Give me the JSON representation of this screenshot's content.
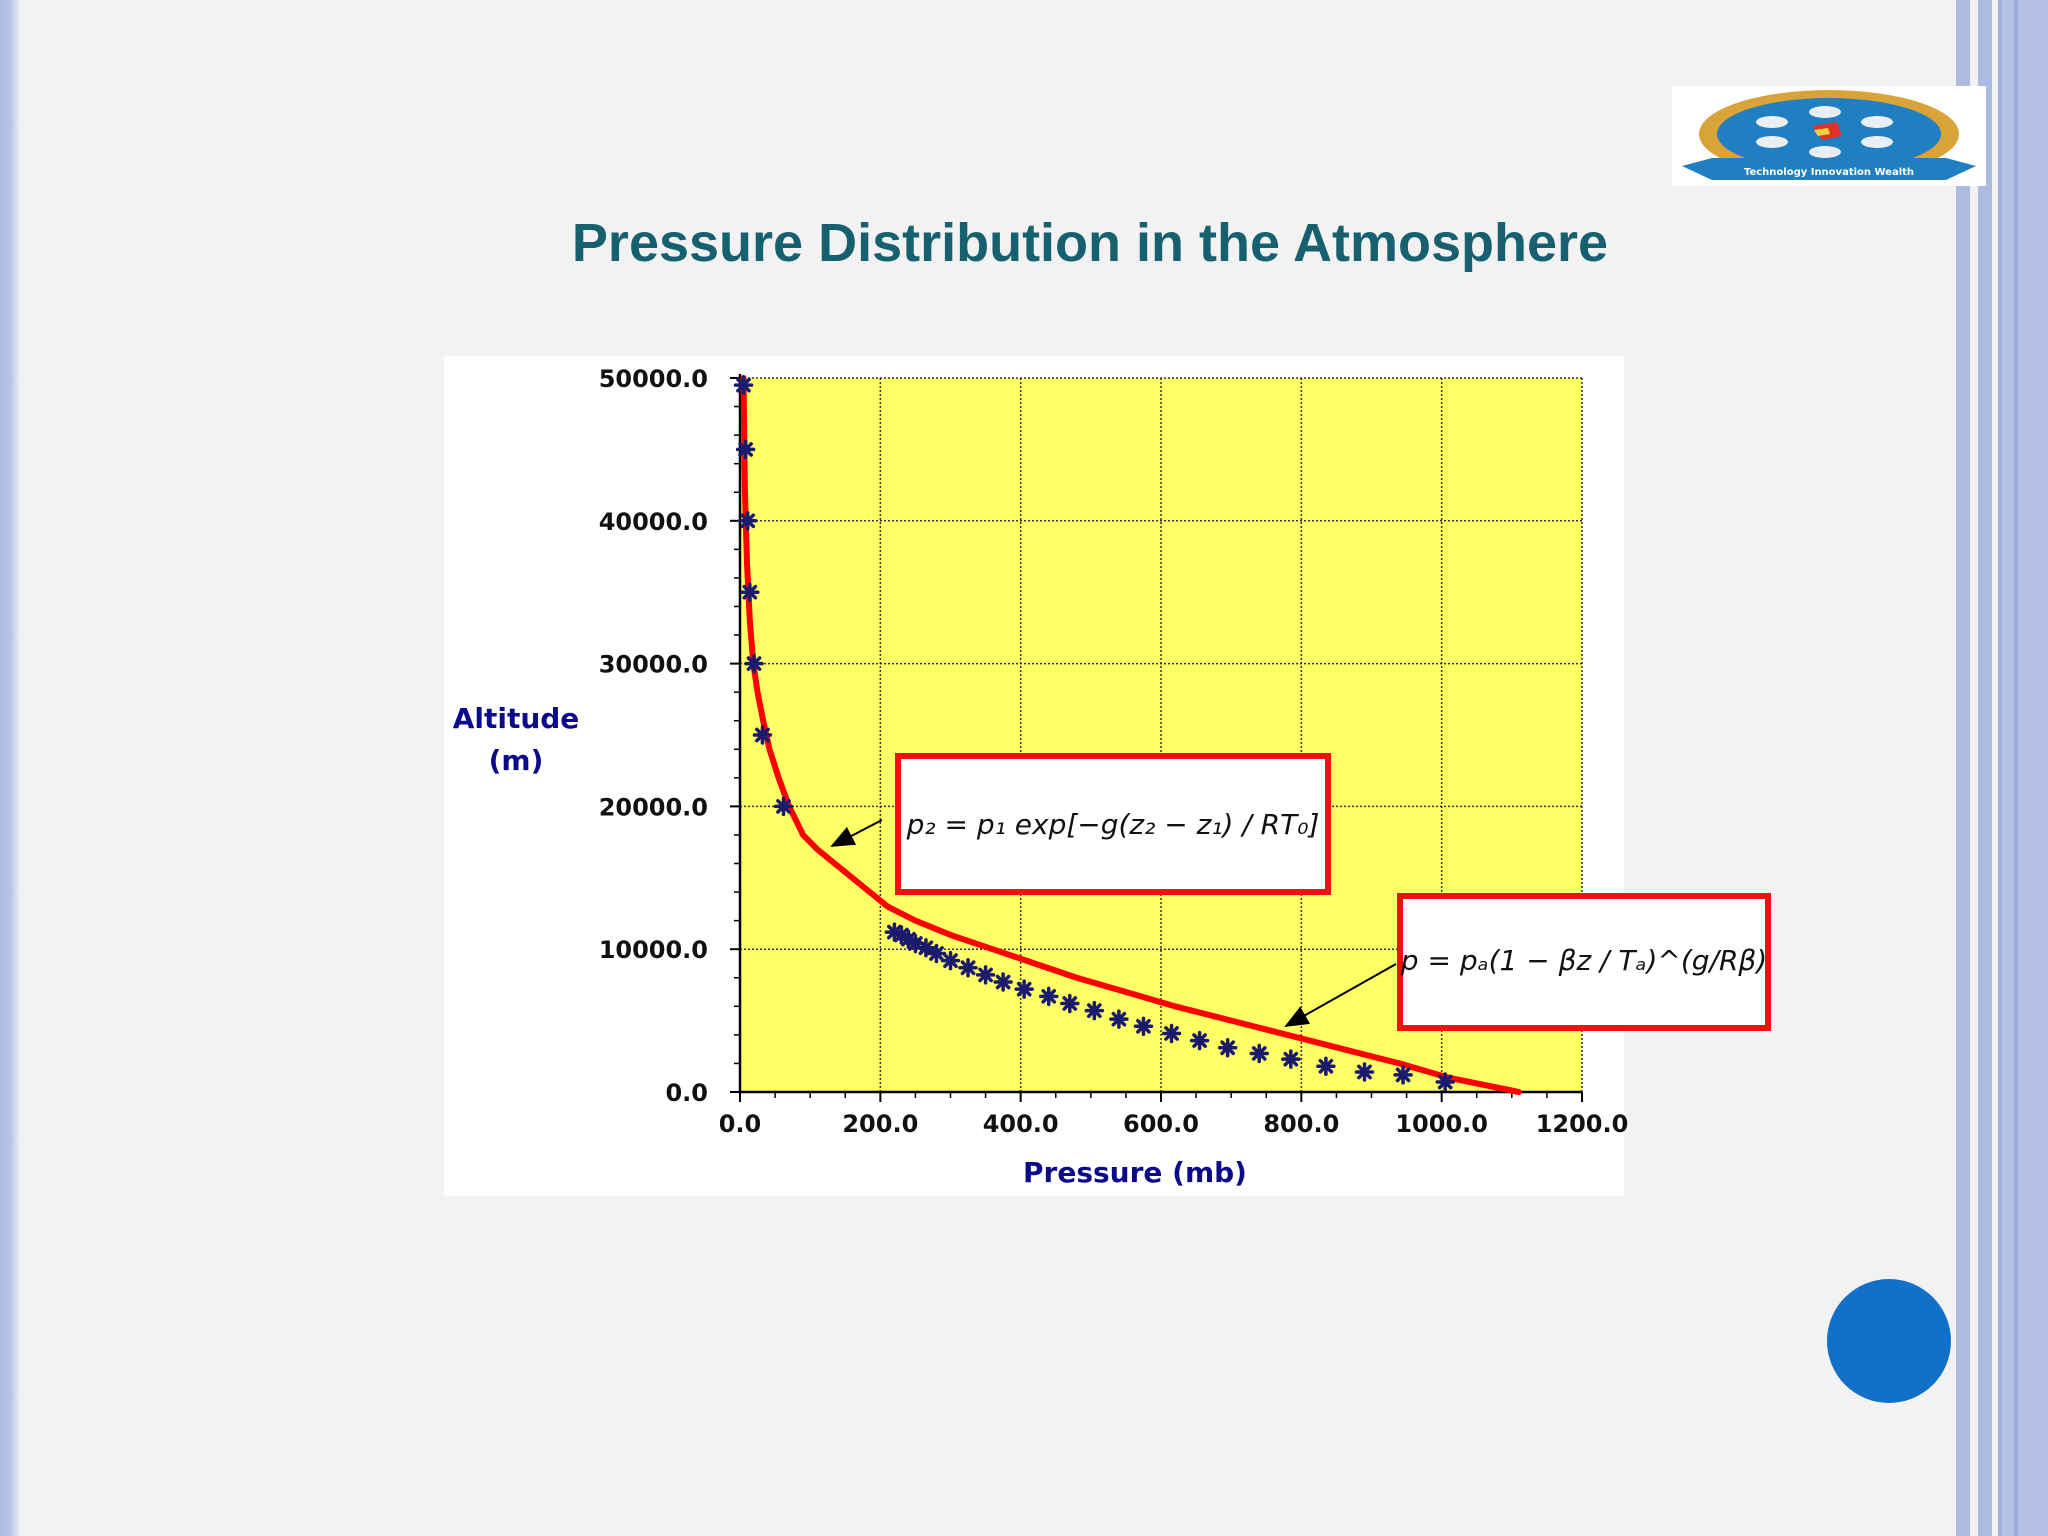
{
  "slide": {
    "title": "Pressure Distribution in the Atmosphere",
    "logo_text": "Technology Innovation Wealth"
  },
  "colors": {
    "title": "#17606f",
    "plot_background": "#ffff66",
    "curve": "#ff0000",
    "markers": "#1a1a6e",
    "axis_labels": "#0a0a8a",
    "circle": "#1270c9",
    "side_bars": "#aebbe0"
  },
  "chart_data": {
    "type": "line",
    "xlabel": "Pressure (mb)",
    "ylabel_line1": "Altitude",
    "ylabel_line2": "(m)",
    "xlim": [
      0,
      1200
    ],
    "ylim": [
      0,
      50000
    ],
    "grid": true,
    "x_ticks": [
      0,
      200,
      400,
      600,
      800,
      1000,
      1200
    ],
    "x_tick_labels": [
      "0.0",
      "200.0",
      "400.0",
      "600.0",
      "800.0",
      "1000.0",
      "1200.0"
    ],
    "y_ticks": [
      0,
      10000,
      20000,
      30000,
      40000,
      50000
    ],
    "y_tick_labels": [
      "0.0",
      "10000.0",
      "20000.0",
      "30000.0",
      "40000.0",
      "50000.0"
    ],
    "series": [
      {
        "kind": "curve",
        "x": [
          1110,
          1010,
          940,
          860,
          780,
          700,
          620,
          550,
          480,
          420,
          360,
          300,
          250,
          210,
          185,
          160,
          135,
          110,
          90,
          70,
          55,
          42,
          33,
          25,
          19,
          14,
          10,
          7,
          5
        ],
        "y": [
          0,
          1000,
          2000,
          3000,
          4000,
          5000,
          6000,
          7000,
          8000,
          9000,
          10000,
          11000,
          12000,
          13000,
          14000,
          15000,
          16000,
          17000,
          18000,
          20000,
          22000,
          24000,
          26000,
          28000,
          30000,
          33000,
          37000,
          42000,
          50000
        ]
      },
      {
        "kind": "markers",
        "x": [
          1005,
          945,
          890,
          835,
          785,
          740,
          695,
          655,
          615,
          575,
          540,
          505,
          470,
          440,
          405,
          375,
          350,
          325,
          300,
          280,
          265,
          250,
          240,
          230,
          220,
          62,
          32,
          20,
          14,
          11,
          8,
          5
        ],
        "y": [
          700,
          1200,
          1400,
          1800,
          2300,
          2700,
          3100,
          3600,
          4100,
          4600,
          5100,
          5700,
          6200,
          6700,
          7200,
          7700,
          8200,
          8700,
          9200,
          9700,
          10100,
          10400,
          10700,
          11000,
          11200,
          20000,
          25000,
          30000,
          35000,
          40000,
          45000,
          49500
        ]
      }
    ],
    "annotations": [
      {
        "id": "eq1",
        "text": "p₂ = p₁ exp[−g(z₂ − z₁) / RT₀]",
        "points_to_x": 130,
        "points_to_y": 17000
      },
      {
        "id": "eq2",
        "text": "p = pₐ(1 − βz / Tₐ)^(g/Rβ)",
        "points_to_x": 775,
        "points_to_y": 4500
      }
    ]
  }
}
